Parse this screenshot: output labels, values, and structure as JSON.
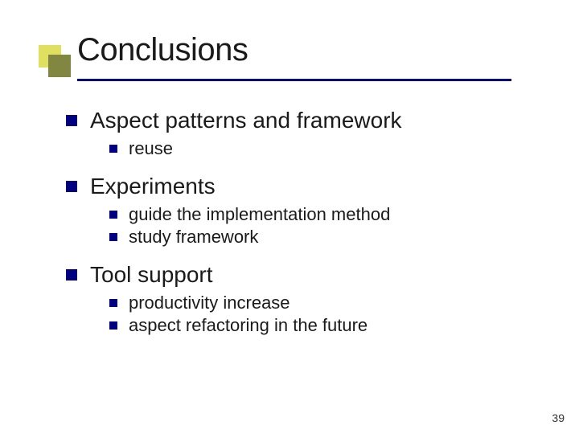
{
  "colors": {
    "decor_back": "#dfe060",
    "decor_front": "#818640",
    "underline": "#000080",
    "bullet": "#000080",
    "title_text": "#1a1a1a",
    "body_text": "#1a1a1a",
    "page_num": "#333333",
    "background": "#ffffff"
  },
  "typography": {
    "title_fontsize": 40,
    "l1_fontsize": 28,
    "l2_fontsize": 22,
    "pagenum_fontsize": 14
  },
  "layout": {
    "underline_width": 540
  },
  "slide": {
    "title": "Conclusions",
    "page_number": "39",
    "sections": [
      {
        "heading": "Aspect patterns and framework",
        "items": [
          "reuse"
        ]
      },
      {
        "heading": "Experiments",
        "items": [
          "guide the implementation method",
          "study framework"
        ]
      },
      {
        "heading": "Tool support",
        "items": [
          "productivity increase",
          "aspect refactoring in the future"
        ]
      }
    ]
  }
}
